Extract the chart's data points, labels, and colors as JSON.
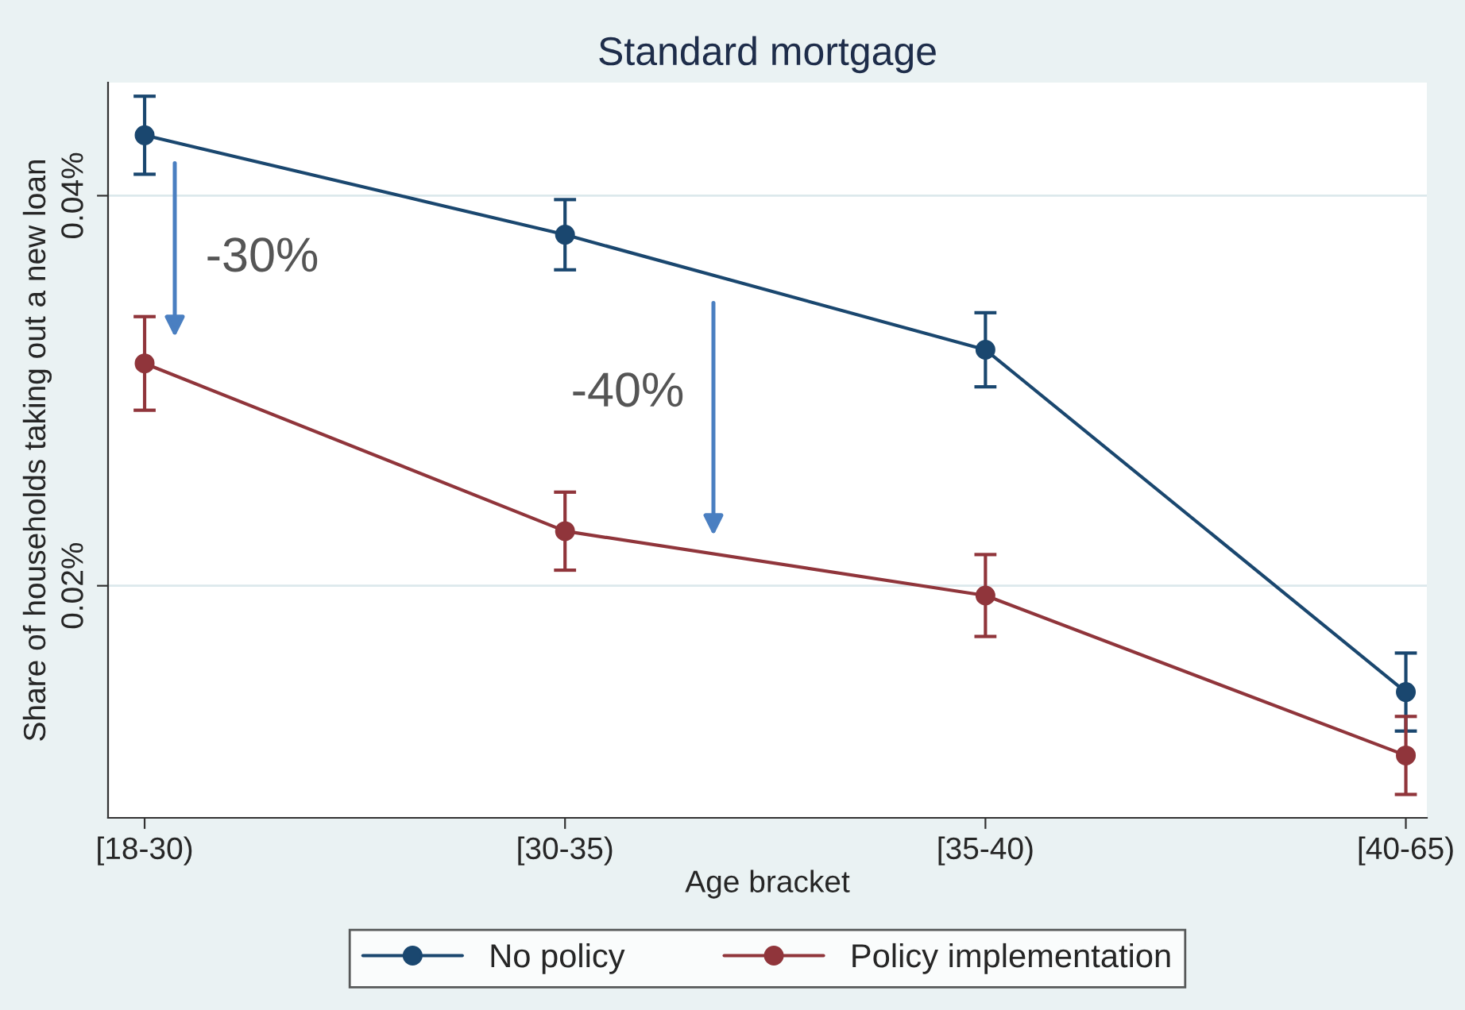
{
  "chart_data": {
    "type": "line",
    "title": "Standard mortgage",
    "xlabel": "Age bracket",
    "ylabel": "Share of households taking out a new loan",
    "categories": [
      "[18-30)",
      "[30-35)",
      "[35-40)",
      "[40-65)"
    ],
    "series": [
      {
        "name": "No policy",
        "color": "#1a476f",
        "values": [
          0.0431,
          0.038,
          0.0321,
          0.01455
        ],
        "errors": [
          0.002,
          0.0018,
          0.0019,
          0.002
        ]
      },
      {
        "name": "Policy implementation",
        "color": "#90353b",
        "values": [
          0.0314,
          0.0228,
          0.0195,
          0.0113
        ],
        "errors": [
          0.0024,
          0.002,
          0.0021,
          0.002
        ]
      }
    ],
    "ylim": [
      0.0081,
      0.0458
    ],
    "yticks": [
      {
        "value": 0.02,
        "label": "0.02%"
      },
      {
        "value": 0.04,
        "label": "0.04%"
      }
    ],
    "grid": "y",
    "legend": "bottom",
    "marker": "circle",
    "line_style": "solid",
    "annotations": [
      "-30%",
      "-40%"
    ]
  }
}
